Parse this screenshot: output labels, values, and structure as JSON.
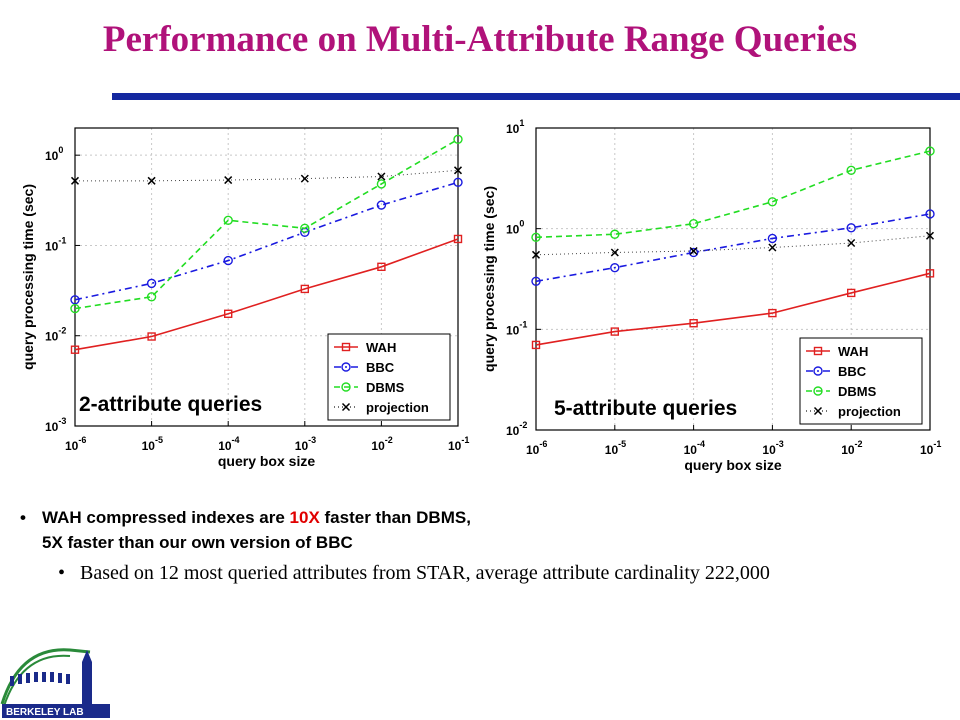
{
  "slide": {
    "title": "Performance on Multi-Attribute Range Queries",
    "bullet1": {
      "prefix": "WAH compressed indexes are ",
      "highlight": "10X",
      "suffix": " faster than DBMS,",
      "line2": "5X faster than our own version of BBC"
    },
    "bullet2": "Based on 12 most queried attributes from STAR, average attribute cardinality 222,000"
  },
  "logo": {
    "text": "BERKELEY LAB",
    "icon": "berkeley-lab-logo"
  },
  "colors": {
    "title": "#b0127a",
    "rule": "#1428a0",
    "highlight": "#e00000"
  },
  "chart_data": [
    {
      "type": "line",
      "annotation": "2-attribute queries",
      "xlabel": "query box size",
      "ylabel": "query processing time (sec)",
      "x_scale": "log",
      "y_scale": "log",
      "xlim": [
        1e-06,
        0.1
      ],
      "ylim": [
        0.001,
        2
      ],
      "x": [
        1e-06,
        1e-05,
        0.0001,
        0.001,
        0.01,
        0.1
      ],
      "x_ticks": [
        {
          "base": "10",
          "exp": "-6"
        },
        {
          "base": "10",
          "exp": "-5"
        },
        {
          "base": "10",
          "exp": "-4"
        },
        {
          "base": "10",
          "exp": "-3"
        },
        {
          "base": "10",
          "exp": "-2"
        },
        {
          "base": "10",
          "exp": "-1"
        }
      ],
      "y_ticks": [
        {
          "v": 0.001,
          "base": "10",
          "exp": "-3"
        },
        {
          "v": 0.01,
          "base": "10",
          "exp": "-2"
        },
        {
          "v": 0.1,
          "base": "10",
          "exp": "-1"
        },
        {
          "v": 1,
          "base": "10",
          "exp": "0"
        }
      ],
      "legend_position": "bottom-right",
      "series": [
        {
          "name": "WAH",
          "color": "#e02020",
          "marker": "square",
          "dash": "",
          "values": [
            0.007,
            0.0098,
            0.0175,
            0.033,
            0.058,
            0.118
          ]
        },
        {
          "name": "BBC",
          "color": "#1a1ae0",
          "marker": "circle",
          "dash": "7,4,2,4",
          "values": [
            0.025,
            0.038,
            0.068,
            0.14,
            0.28,
            0.5
          ]
        },
        {
          "name": "DBMS",
          "color": "#22dd22",
          "marker": "circle",
          "dash": "6,4",
          "values": [
            0.02,
            0.027,
            0.19,
            0.155,
            0.48,
            1.5
          ]
        },
        {
          "name": "projection",
          "color": "#444444",
          "marker": "x",
          "dash": "1,3",
          "values": [
            0.52,
            0.52,
            0.53,
            0.55,
            0.58,
            0.68
          ]
        }
      ]
    },
    {
      "type": "line",
      "annotation": "5-attribute queries",
      "xlabel": "query box size",
      "ylabel": "query processing time (sec)",
      "x_scale": "log",
      "y_scale": "log",
      "xlim": [
        1e-06,
        0.1
      ],
      "ylim": [
        0.01,
        10
      ],
      "x": [
        1e-06,
        1e-05,
        0.0001,
        0.001,
        0.01,
        0.1
      ],
      "x_ticks": [
        {
          "base": "10",
          "exp": "-6"
        },
        {
          "base": "10",
          "exp": "-5"
        },
        {
          "base": "10",
          "exp": "-4"
        },
        {
          "base": "10",
          "exp": "-3"
        },
        {
          "base": "10",
          "exp": "-2"
        },
        {
          "base": "10",
          "exp": "-1"
        }
      ],
      "y_ticks": [
        {
          "v": 0.01,
          "base": "10",
          "exp": "-2"
        },
        {
          "v": 0.1,
          "base": "10",
          "exp": "-1"
        },
        {
          "v": 1,
          "base": "10",
          "exp": "0"
        },
        {
          "v": 10,
          "base": "10",
          "exp": "1"
        }
      ],
      "legend_position": "bottom-right",
      "series": [
        {
          "name": "WAH",
          "color": "#e02020",
          "marker": "square",
          "dash": "",
          "values": [
            0.07,
            0.095,
            0.115,
            0.145,
            0.23,
            0.36
          ]
        },
        {
          "name": "BBC",
          "color": "#1a1ae0",
          "marker": "circle",
          "dash": "7,4,2,4",
          "values": [
            0.3,
            0.41,
            0.58,
            0.8,
            1.02,
            1.4
          ]
        },
        {
          "name": "DBMS",
          "color": "#22dd22",
          "marker": "circle",
          "dash": "6,4",
          "values": [
            0.82,
            0.88,
            1.12,
            1.85,
            3.8,
            5.9
          ]
        },
        {
          "name": "projection",
          "color": "#444444",
          "marker": "x",
          "dash": "1,3",
          "values": [
            0.55,
            0.58,
            0.6,
            0.65,
            0.72,
            0.85
          ]
        }
      ]
    }
  ]
}
